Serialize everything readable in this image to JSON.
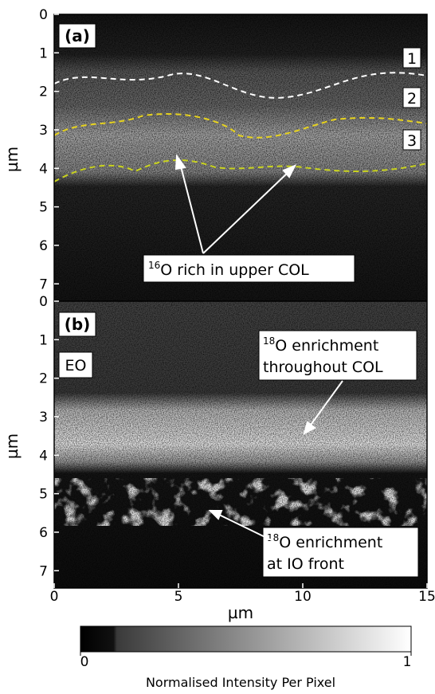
{
  "panels": [
    {
      "label": "(a)",
      "ylim": [
        0,
        7.45
      ],
      "yticks": [
        0,
        1,
        2,
        3,
        4,
        5,
        6,
        7
      ],
      "layer_labels": [
        "1",
        "2",
        "3"
      ],
      "annotation": {
        "sup": "16",
        "text": "O rich in upper COL"
      }
    },
    {
      "label": "(b)",
      "ylim": [
        0,
        7.45
      ],
      "yticks": [
        0,
        1,
        2,
        3,
        4,
        5,
        6,
        7
      ],
      "region_label": "EO",
      "annotations": [
        {
          "sup": "18",
          "line1": "O enrichment",
          "line2": "throughout COL"
        },
        {
          "sup": "18",
          "line1": "O enrichment",
          "line2": "at IO front"
        }
      ]
    }
  ],
  "y_axis_label": "µm",
  "x_axis": {
    "label": "µm",
    "xlim": [
      0,
      15
    ],
    "xticks": [
      0,
      5,
      10,
      15
    ]
  },
  "colorbar": {
    "label": "Normalised Intensity Per Pixel",
    "lim": [
      0,
      1
    ],
    "ticks": [
      0,
      1
    ]
  }
}
